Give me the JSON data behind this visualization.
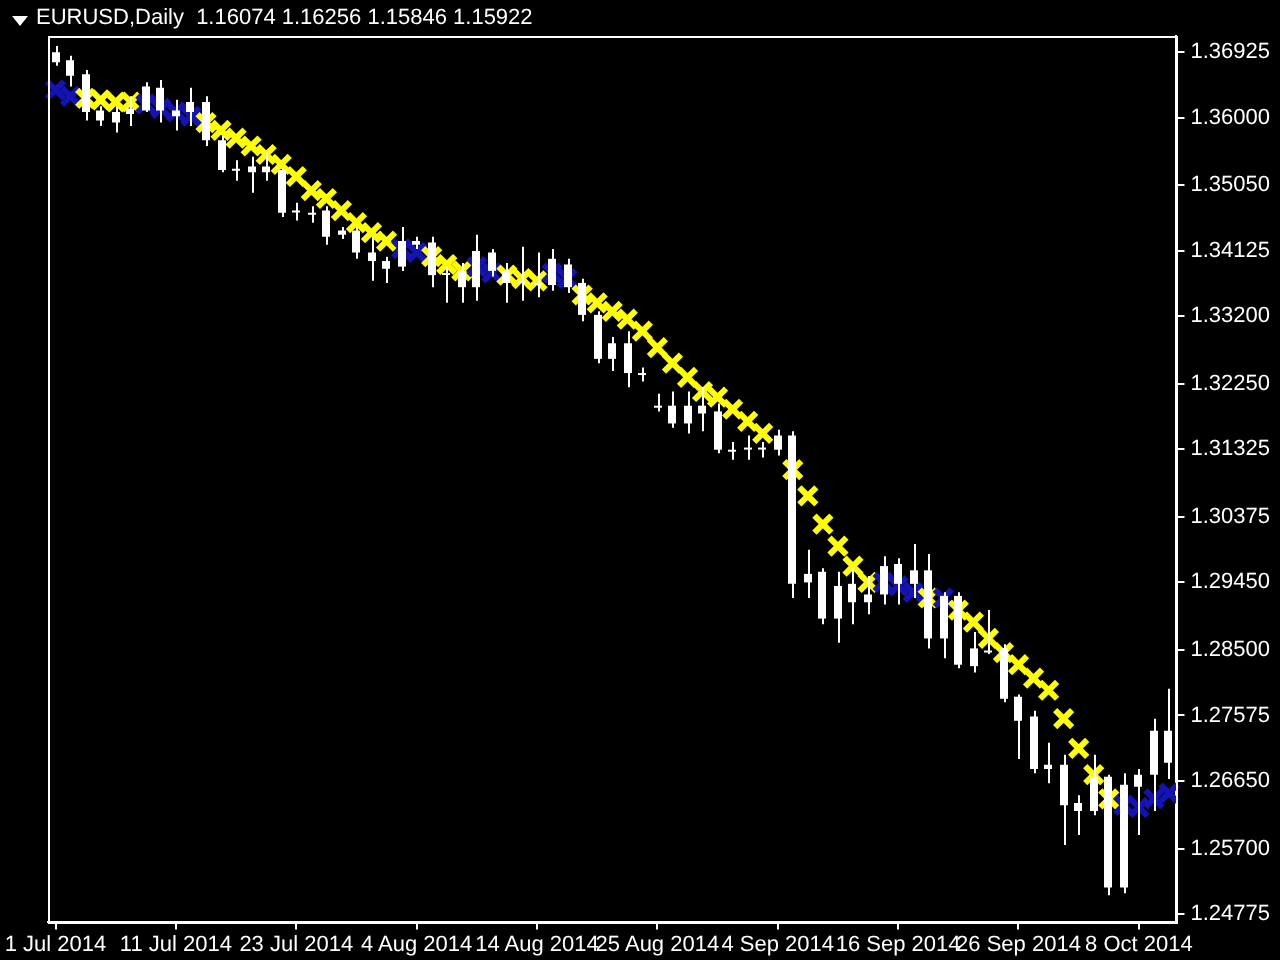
{
  "chart_data": {
    "type": "candlestick",
    "title": "EURUSD,Daily  1.16074 1.16256 1.15846 1.15922",
    "categories": [
      "1 Jul 2014",
      null,
      null,
      null,
      null,
      null,
      null,
      null,
      "11 Jul 2014",
      null,
      null,
      null,
      null,
      null,
      null,
      null,
      "23 Jul 2014",
      null,
      null,
      null,
      null,
      null,
      null,
      null,
      "4 Aug 2014",
      null,
      null,
      null,
      null,
      null,
      null,
      null,
      "14 Aug 2014",
      null,
      null,
      null,
      null,
      null,
      null,
      null,
      "25 Aug 2014",
      null,
      null,
      null,
      null,
      null,
      null,
      null,
      "4 Sep 2014",
      null,
      null,
      null,
      null,
      null,
      null,
      null,
      "16 Sep 2014",
      null,
      null,
      null,
      null,
      null,
      null,
      null,
      "26 Sep 2014",
      null,
      null,
      null,
      null,
      null,
      null,
      null,
      "8 Oct 2014",
      null,
      null
    ],
    "color": "#ffffff",
    "ohlc": [
      [
        1.3692,
        1.3701,
        1.3673,
        1.3678
      ],
      [
        1.3681,
        1.3687,
        1.3644,
        1.3659
      ],
      [
        1.3661,
        1.3667,
        1.3596,
        1.3608
      ],
      [
        1.361,
        1.3616,
        1.3588,
        1.3596
      ],
      [
        1.3608,
        1.3616,
        1.3579,
        1.3593
      ],
      [
        1.3613,
        1.363,
        1.3588,
        1.3605
      ],
      [
        1.3644,
        1.365,
        1.3608,
        1.361
      ],
      [
        1.3642,
        1.3653,
        1.3593,
        1.361
      ],
      [
        1.361,
        1.3625,
        1.3582,
        1.3602
      ],
      [
        1.3622,
        1.3642,
        1.3588,
        1.3608
      ],
      [
        1.3622,
        1.363,
        1.356,
        1.3568
      ],
      [
        1.3568,
        1.3574,
        1.3523,
        1.3526
      ],
      [
        1.3528,
        1.354,
        1.3511,
        1.3528
      ],
      [
        1.3531,
        1.3545,
        1.3494,
        1.3523
      ],
      [
        1.3531,
        1.3551,
        1.3511,
        1.3523
      ],
      [
        1.3526,
        1.3528,
        1.346,
        1.3466
      ],
      [
        1.3469,
        1.348,
        1.3455,
        1.3469
      ],
      [
        1.3466,
        1.3475,
        1.3452,
        1.3466
      ],
      [
        1.3469,
        1.3475,
        1.3421,
        1.3432
      ],
      [
        1.3441,
        1.3446,
        1.3429,
        1.3435
      ],
      [
        1.3441,
        1.3446,
        1.3401,
        1.341
      ],
      [
        1.341,
        1.3432,
        1.337,
        1.3398
      ],
      [
        1.3398,
        1.3404,
        1.3367,
        1.3387
      ],
      [
        1.3426,
        1.3446,
        1.3384,
        1.339
      ],
      [
        1.3426,
        1.3432,
        1.3415,
        1.3421
      ],
      [
        1.3424,
        1.3432,
        1.3361,
        1.3378
      ],
      [
        1.3381,
        1.339,
        1.3339,
        1.3381
      ],
      [
        1.3384,
        1.3395,
        1.3339,
        1.3361
      ],
      [
        1.3412,
        1.3435,
        1.3342,
        1.3361
      ],
      [
        1.341,
        1.3415,
        1.3376,
        1.3384
      ],
      [
        1.3384,
        1.3395,
        1.3339,
        1.3367
      ],
      [
        1.337,
        1.3418,
        1.3342,
        1.337
      ],
      [
        1.3367,
        1.341,
        1.3347,
        1.3367
      ],
      [
        1.3401,
        1.3415,
        1.3356,
        1.3364
      ],
      [
        1.3393,
        1.3401,
        1.3353,
        1.3361
      ],
      [
        1.3367,
        1.3373,
        1.3313,
        1.3322
      ],
      [
        1.3322,
        1.3327,
        1.3254,
        1.326
      ],
      [
        1.3282,
        1.3291,
        1.3243,
        1.326
      ],
      [
        1.3282,
        1.3299,
        1.322,
        1.324
      ],
      [
        1.324,
        1.3248,
        1.3228,
        1.324
      ],
      [
        1.3194,
        1.3211,
        1.3186,
        1.3194
      ],
      [
        1.3194,
        1.3214,
        1.3163,
        1.3169
      ],
      [
        1.3194,
        1.3214,
        1.3155,
        1.3169
      ],
      [
        1.3194,
        1.322,
        1.3158,
        1.3183
      ],
      [
        1.3186,
        1.3197,
        1.3127,
        1.3132
      ],
      [
        1.3132,
        1.3143,
        1.3118,
        1.3132
      ],
      [
        1.3135,
        1.3152,
        1.3118,
        1.3135
      ],
      [
        1.3135,
        1.3143,
        1.3121,
        1.3135
      ],
      [
        1.3152,
        1.316,
        1.3124,
        1.3132
      ],
      [
        1.3152,
        1.3158,
        1.2923,
        1.2943
      ],
      [
        1.2957,
        1.2991,
        1.2923,
        1.2945
      ],
      [
        1.296,
        1.2965,
        1.2886,
        1.2894
      ],
      [
        1.294,
        1.296,
        1.286,
        1.2894
      ],
      [
        1.2943,
        1.2965,
        1.2886,
        1.2917
      ],
      [
        1.2928,
        1.2954,
        1.29,
        1.2917
      ],
      [
        1.2968,
        1.2982,
        1.2914,
        1.2928
      ],
      [
        1.2971,
        1.2979,
        1.2914,
        1.2943
      ],
      [
        1.2962,
        1.2999,
        1.2923,
        1.2943
      ],
      [
        1.2962,
        1.2985,
        1.2852,
        1.2866
      ],
      [
        1.2926,
        1.2931,
        1.2838,
        1.2866
      ],
      [
        1.2926,
        1.2931,
        1.2824,
        1.2829
      ],
      [
        1.2852,
        1.2875,
        1.2818,
        1.2827
      ],
      [
        1.2849,
        1.2906,
        1.2844,
        1.2849
      ],
      [
        1.2852,
        1.2858,
        1.2776,
        1.2781
      ],
      [
        1.2784,
        1.2787,
        1.2696,
        1.275
      ],
      [
        1.2756,
        1.2764,
        1.2676,
        1.2682
      ],
      [
        1.2688,
        1.2719,
        1.2662,
        1.2682
      ],
      [
        1.2688,
        1.2702,
        1.2575,
        1.2631
      ],
      [
        1.2634,
        1.2645,
        1.2589,
        1.2623
      ],
      [
        1.2671,
        1.2702,
        1.2617,
        1.2623
      ],
      [
        1.2671,
        1.2674,
        1.2504,
        1.2515
      ],
      [
        1.266,
        1.2676,
        1.2507,
        1.2515
      ],
      [
        1.2674,
        1.2682,
        1.2589,
        1.2657
      ],
      [
        1.2736,
        1.2753,
        1.2623,
        1.2674
      ],
      [
        1.2736,
        1.2795,
        1.2668,
        1.2691
      ]
    ],
    "series": [
      {
        "type": "scatter",
        "marker": "cross",
        "values": [
          1.3639,
          1.363,
          1.3627,
          1.3625,
          1.3622,
          1.3622,
          1.3619,
          1.3613,
          1.3608,
          1.3602,
          1.3593,
          1.3582,
          1.3571,
          1.356,
          1.3548,
          1.3534,
          1.3517,
          1.3497,
          1.3486,
          1.3469,
          1.3452,
          1.3438,
          1.3426,
          1.3415,
          1.341,
          1.3404,
          1.3393,
          1.3384,
          1.339,
          1.3381,
          1.3378,
          1.3373,
          1.337,
          1.3381,
          1.3373,
          1.335,
          1.3339,
          1.3327,
          1.3316,
          1.3299,
          1.3276,
          1.3254,
          1.3234,
          1.3214,
          1.3206,
          1.3189,
          1.3172,
          1.3155,
          null,
          1.3104,
          1.3067,
          1.3027,
          1.2996,
          1.2968,
          1.2945,
          1.2945,
          1.294,
          1.2931,
          1.2923,
          1.2923,
          1.2906,
          1.2889,
          1.2866,
          1.2846,
          1.2829,
          1.281,
          1.2793,
          1.2753,
          1.2711,
          1.2674,
          1.264,
          1.2631,
          1.2628,
          1.264,
          1.2648
        ],
        "colors": [
          "#1414b4",
          "#1414b4",
          "#ffff00",
          "#ffff00",
          "#ffff00",
          "#ffff00",
          "#1414b4",
          "#1414b4",
          "#1414b4",
          "#1414b4",
          "#ffff00",
          "#ffff00",
          "#ffff00",
          "#ffff00",
          "#ffff00",
          "#ffff00",
          "#ffff00",
          "#ffff00",
          "#ffff00",
          "#ffff00",
          "#ffff00",
          "#ffff00",
          "#ffff00",
          "#1414b4",
          "#1414b4",
          "#ffff00",
          "#ffff00",
          "#ffff00",
          "#1414b4",
          "#1414b4",
          "#ffff00",
          "#ffff00",
          "#ffff00",
          "#1414b4",
          "#1414b4",
          "#ffff00",
          "#ffff00",
          "#ffff00",
          "#ffff00",
          "#ffff00",
          "#ffff00",
          "#ffff00",
          "#ffff00",
          "#ffff00",
          "#ffff00",
          "#ffff00",
          "#ffff00",
          "#ffff00",
          "#1414b4",
          "#ffff00",
          "#ffff00",
          "#ffff00",
          "#ffff00",
          "#ffff00",
          "#ffff00",
          "#1414b4",
          "#1414b4",
          "#1414b4",
          "#ffff00",
          "#1414b4",
          "#ffff00",
          "#ffff00",
          "#ffff00",
          "#ffff00",
          "#ffff00",
          "#ffff00",
          "#ffff00",
          "#ffff00",
          "#ffff00",
          "#ffff00",
          "#ffff00",
          "#1414b4",
          "#1414b4",
          "#1414b4",
          "#1414b4"
        ]
      }
    ],
    "ylim": [
      1.2467,
      1.3715
    ],
    "yticks": [
      1.36925,
      {
        "value": 1.36,
        "label": "1.36000"
      },
      {
        "value": 1.3505,
        "label": "1.35050"
      },
      1.34125,
      {
        "value": 1.332,
        "label": "1.33200"
      },
      {
        "value": 1.3225,
        "label": "1.32250"
      },
      1.31325,
      1.30375,
      {
        "value": 1.2945,
        "label": "1.29450"
      },
      {
        "value": 1.285,
        "label": "1.28500"
      },
      1.27575,
      {
        "value": 1.2665,
        "label": "1.26650"
      },
      {
        "value": 1.257,
        "label": "1.25700"
      },
      1.24775
    ]
  }
}
